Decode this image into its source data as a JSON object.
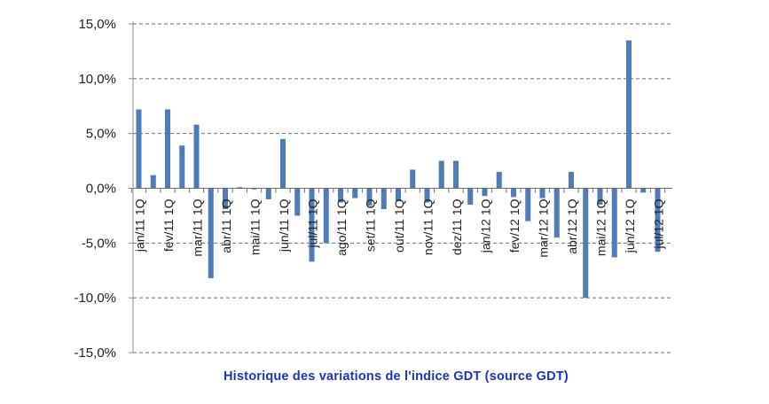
{
  "chart_data": {
    "type": "bar",
    "title": "",
    "caption": "Historique des variations de l'indice GDT (source GDT)",
    "xlabel": "",
    "ylabel": "",
    "ylim": [
      -15,
      15
    ],
    "yticks": [
      "15,0%",
      "10,0%",
      "5,0%",
      "0,0%",
      "-5,0%",
      "-10,0%",
      "-15,0%"
    ],
    "ytick_values": [
      15,
      10,
      5,
      0,
      -5,
      -10,
      -15
    ],
    "grid": true,
    "legend": "none",
    "bar_color": "#4f7cb5",
    "tick_labels": [
      "jan/11 1Q",
      "fev/11 1Q",
      "mar/11 1Q",
      "abr/11 1Q",
      "mai/11 1Q",
      "jun/11 1Q",
      "jul/11 1Q",
      "ago/11 1Q",
      "set/11 1Q",
      "out/11 1Q",
      "nov/11 1Q",
      "dez/11 1Q",
      "jan/12 1Q",
      "fev/12 1Q",
      "mar/12 1Q",
      "abr/12 1Q",
      "mai/12 1Q",
      "jun/12 1Q",
      "jul/12 1Q"
    ],
    "values": [
      7.2,
      1.2,
      7.2,
      3.9,
      5.8,
      -8.2,
      -1.9,
      0.1,
      -0.1,
      -1.0,
      4.5,
      -2.5,
      -6.7,
      -5.0,
      -1.3,
      -0.9,
      -1.6,
      -1.9,
      -1.2,
      1.7,
      -1.3,
      2.5,
      2.5,
      -1.5,
      -0.7,
      1.5,
      -0.8,
      -3.0,
      -0.9,
      -4.5,
      1.5,
      -10.0,
      -1.5,
      -6.3,
      13.5,
      -0.4,
      -5.8
    ]
  }
}
